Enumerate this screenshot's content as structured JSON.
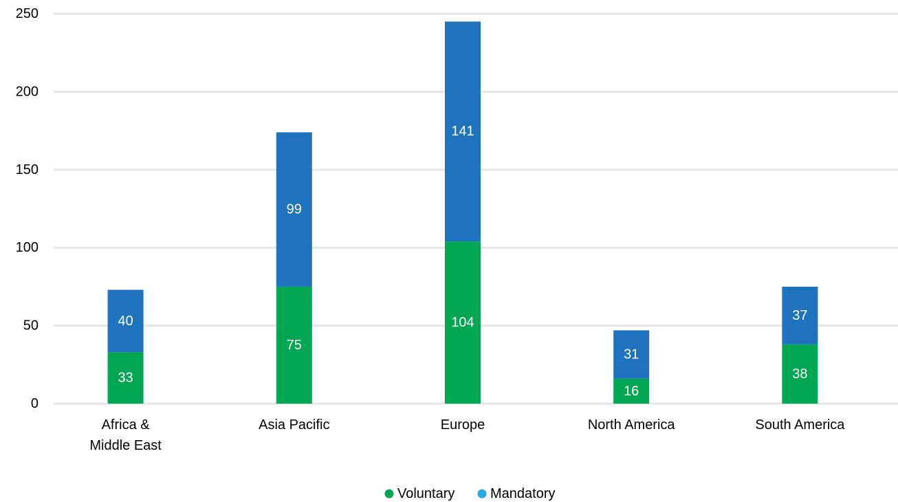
{
  "chart_data": {
    "type": "bar",
    "stacked": true,
    "categories": [
      "Africa & Middle East",
      "Asia Pacific",
      "Europe",
      "North America",
      "South America"
    ],
    "category_lines": [
      [
        "Africa &",
        "Middle East"
      ],
      [
        "Asia Pacific"
      ],
      [
        "Europe"
      ],
      [
        "North America"
      ],
      [
        "South America"
      ]
    ],
    "series": [
      {
        "name": "Voluntary",
        "values": [
          33,
          75,
          104,
          16,
          38
        ],
        "color": "#00a651"
      },
      {
        "name": "Mandatory",
        "values": [
          40,
          99,
          141,
          31,
          37
        ],
        "color": "#1f72bd"
      }
    ],
    "legend_markers": [
      "#00a651",
      "#2aa8e6"
    ],
    "ylim": [
      0,
      250
    ],
    "yticks": [
      0,
      50,
      100,
      150,
      200,
      250
    ],
    "grid": true,
    "legend_position": "bottom-center",
    "title": "",
    "xlabel": "",
    "ylabel": ""
  }
}
